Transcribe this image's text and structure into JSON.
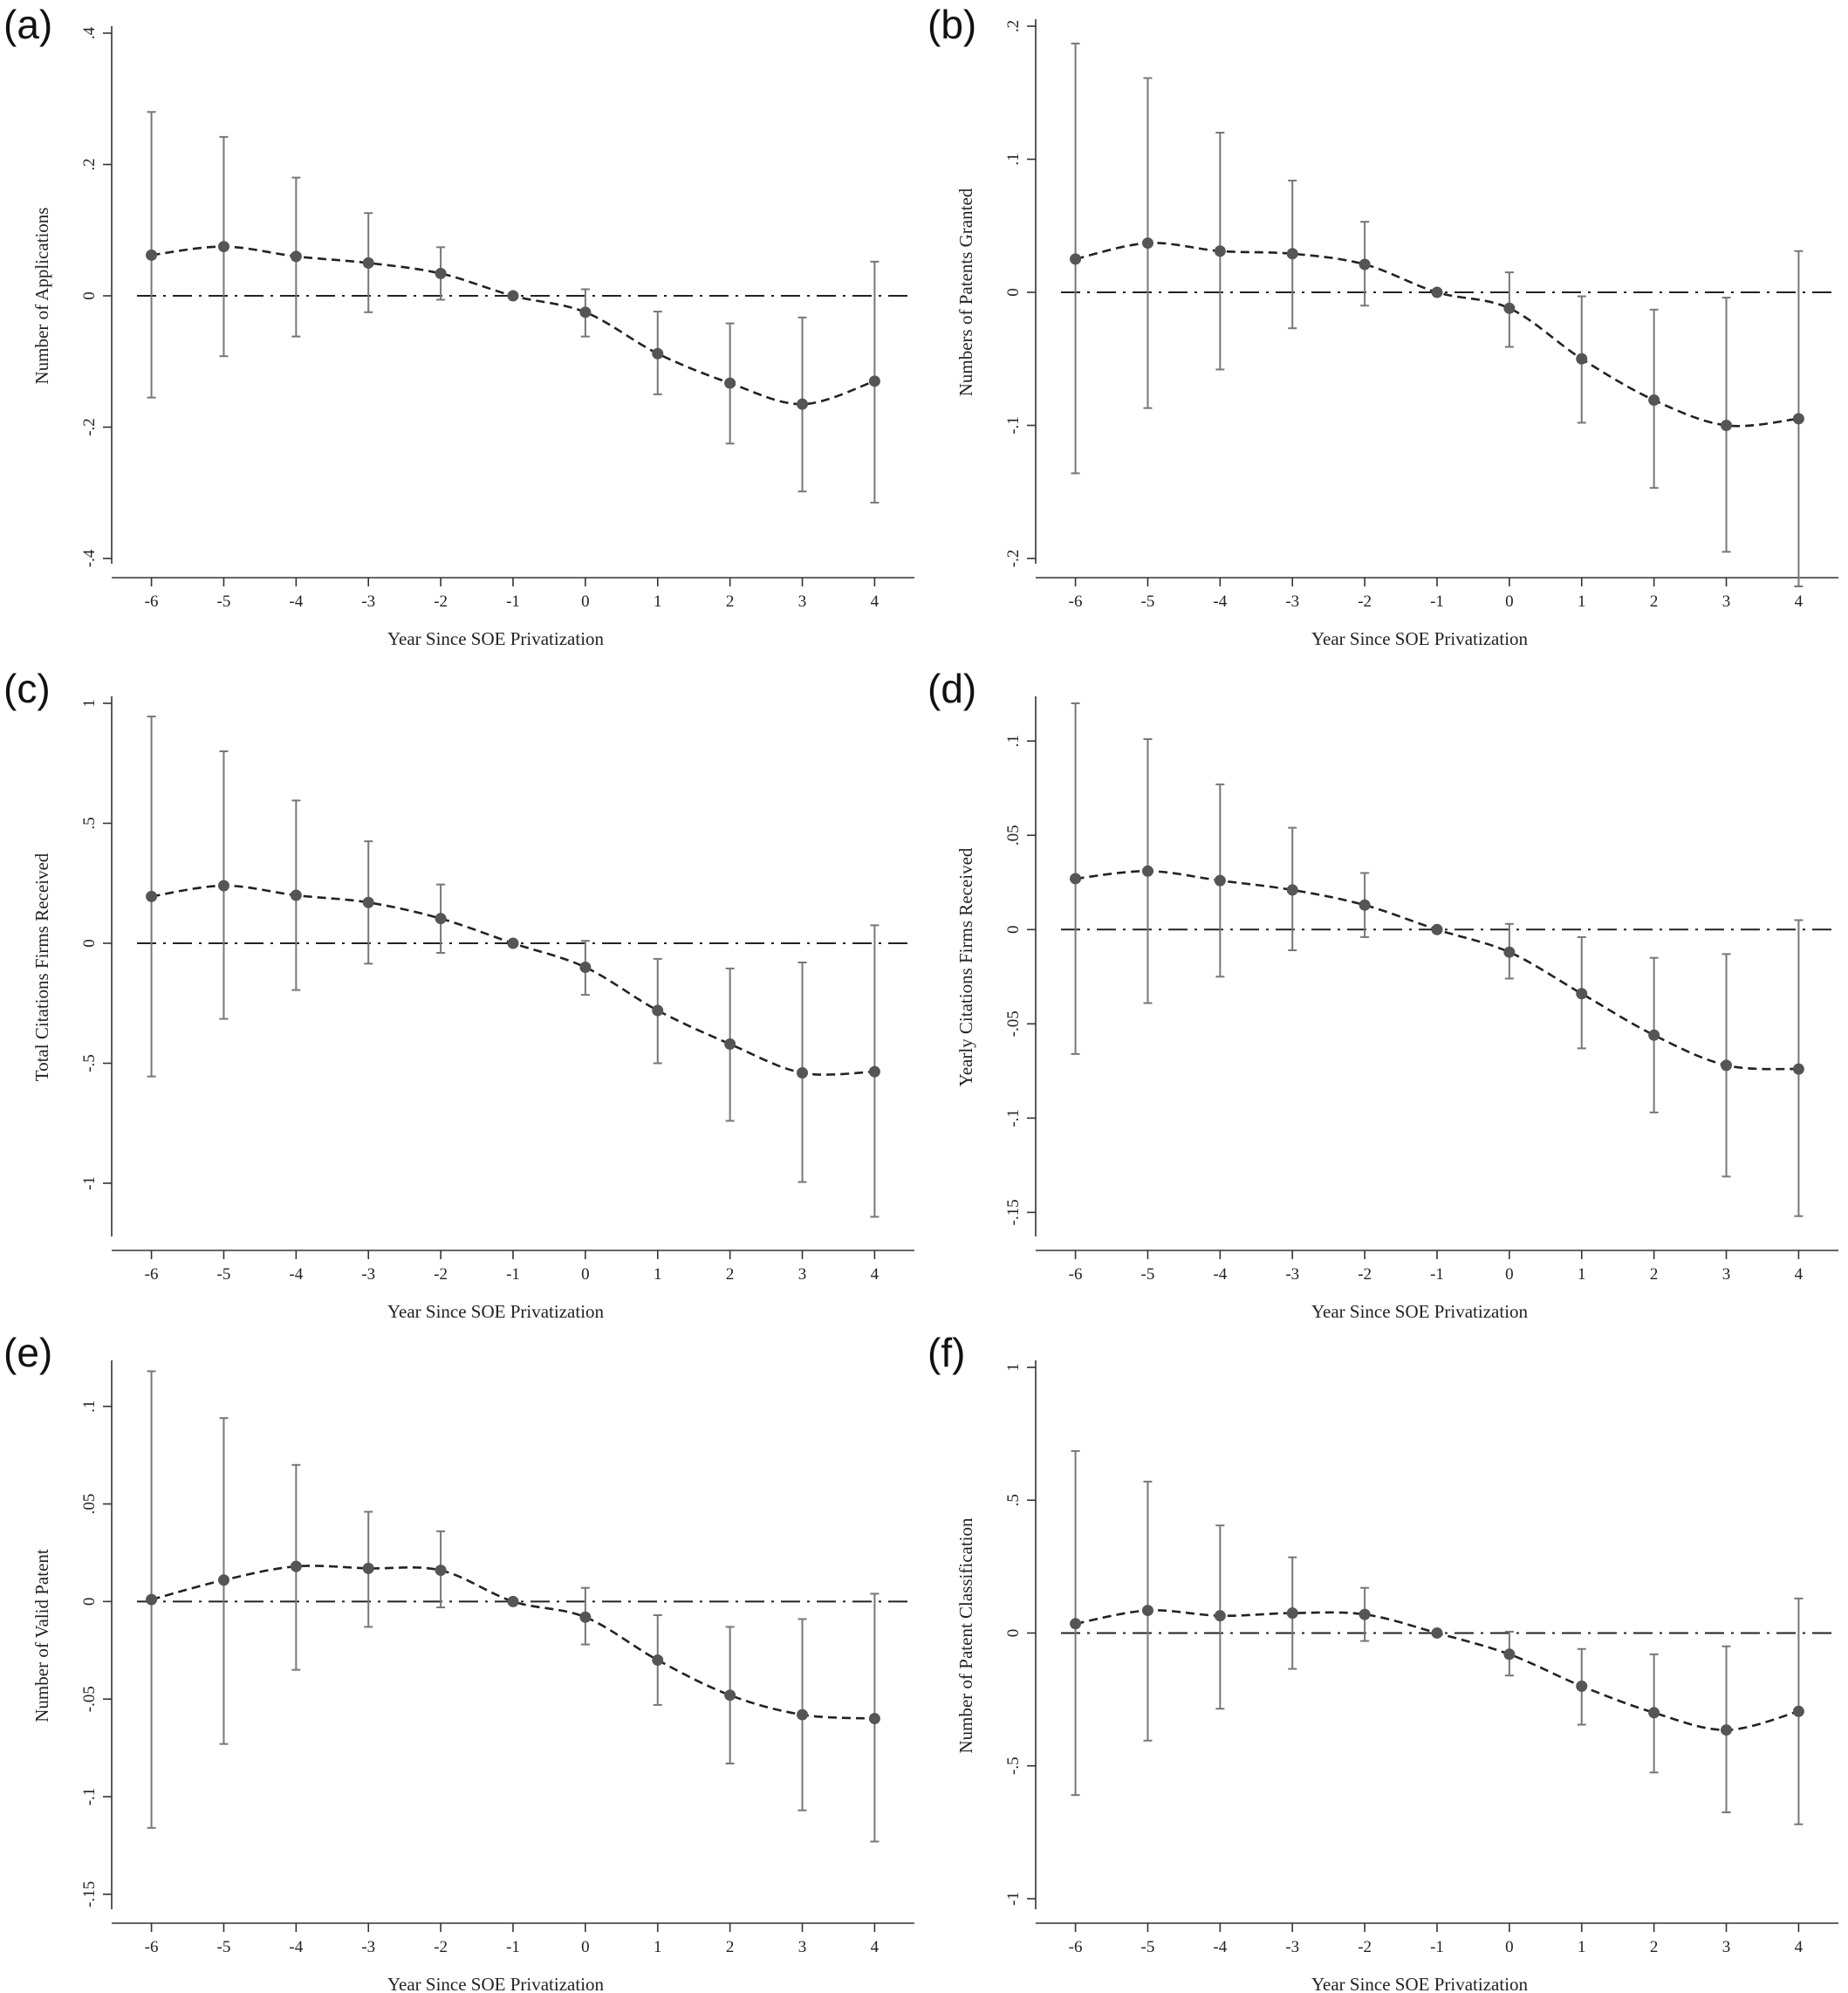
{
  "chart_data": [
    {
      "panel_label": "(a)",
      "type": "line",
      "xlabel": "Year Since SOE Privatization",
      "ylabel": "Number of Applications",
      "x": [
        -6,
        -5,
        -4,
        -3,
        -2,
        -1,
        0,
        1,
        2,
        3,
        4
      ],
      "ylim": [
        -0.4,
        0.4
      ],
      "yticks": [
        0.4,
        0.2,
        0,
        -0.2,
        -0.4
      ],
      "ytick_labels": [
        ".4",
        ".2",
        "0",
        "-.2",
        "-.4"
      ],
      "estimate": [
        0.062,
        0.075,
        0.06,
        0.05,
        0.034,
        0.0,
        -0.025,
        -0.088,
        -0.133,
        -0.165,
        -0.13
      ],
      "ci_low": [
        -0.155,
        -0.092,
        -0.062,
        -0.025,
        -0.006,
        0.0,
        -0.062,
        -0.15,
        -0.225,
        -0.298,
        -0.315
      ],
      "ci_high": [
        0.28,
        0.242,
        0.18,
        0.126,
        0.074,
        0.0,
        0.01,
        -0.024,
        -0.042,
        -0.033,
        0.052
      ]
    },
    {
      "panel_label": "(b)",
      "type": "line",
      "xlabel": "Year Since SOE Privatization",
      "ylabel": "Numbers of Patents Granted",
      "x": [
        -6,
        -5,
        -4,
        -3,
        -2,
        -1,
        0,
        1,
        2,
        3,
        4
      ],
      "ylim": [
        -0.2,
        0.2
      ],
      "yticks": [
        0.2,
        0.1,
        0,
        -0.1,
        -0.2
      ],
      "ytick_labels": [
        ".2",
        ".1",
        "0",
        "-.1",
        "-.2"
      ],
      "estimate": [
        0.025,
        0.037,
        0.031,
        0.029,
        0.021,
        0.0,
        -0.012,
        -0.05,
        -0.081,
        -0.1,
        -0.095
      ],
      "ci_low": [
        -0.136,
        -0.087,
        -0.058,
        -0.027,
        -0.01,
        0.0,
        -0.041,
        -0.098,
        -0.147,
        -0.195,
        -0.221
      ],
      "ci_high": [
        0.187,
        0.161,
        0.12,
        0.084,
        0.053,
        0.0,
        0.015,
        -0.003,
        -0.013,
        -0.004,
        0.031
      ]
    },
    {
      "panel_label": "(c)",
      "type": "line",
      "xlabel": "Year Since SOE Privatization",
      "ylabel": "Total Citations Firms Received",
      "x": [
        -6,
        -5,
        -4,
        -3,
        -2,
        -1,
        0,
        1,
        2,
        3,
        4
      ],
      "ylim": [
        -1.2,
        1.0
      ],
      "yticks": [
        1,
        0.5,
        0,
        -0.5,
        -1
      ],
      "ytick_labels": [
        "1",
        ".5",
        "0",
        "-.5",
        "-1"
      ],
      "estimate": [
        0.195,
        0.24,
        0.2,
        0.17,
        0.103,
        0.0,
        -0.1,
        -0.28,
        -0.42,
        -0.54,
        -0.535
      ],
      "ci_low": [
        -0.555,
        -0.315,
        -0.195,
        -0.085,
        -0.04,
        0.0,
        -0.215,
        -0.5,
        -0.74,
        -0.995,
        -1.14
      ],
      "ci_high": [
        0.945,
        0.8,
        0.595,
        0.425,
        0.245,
        0.0,
        0.01,
        -0.065,
        -0.105,
        -0.08,
        0.075
      ]
    },
    {
      "panel_label": "(d)",
      "type": "line",
      "xlabel": "Year Since SOE Privatization",
      "ylabel": "Yearly Citations Firms Received",
      "x": [
        -6,
        -5,
        -4,
        -3,
        -2,
        -1,
        0,
        1,
        2,
        3,
        4
      ],
      "ylim": [
        -0.16,
        0.12
      ],
      "yticks": [
        0.1,
        0.05,
        0,
        -0.05,
        -0.1,
        -0.15
      ],
      "ytick_labels": [
        ".1",
        ".05",
        "0",
        "-.05",
        "-.1",
        "-.15"
      ],
      "estimate": [
        0.027,
        0.031,
        0.026,
        0.021,
        0.013,
        0.0,
        -0.012,
        -0.034,
        -0.056,
        -0.072,
        -0.074
      ],
      "ci_low": [
        -0.066,
        -0.039,
        -0.025,
        -0.011,
        -0.004,
        0.0,
        -0.026,
        -0.063,
        -0.097,
        -0.131,
        -0.152
      ],
      "ci_high": [
        0.12,
        0.101,
        0.077,
        0.054,
        0.03,
        0.0,
        0.003,
        -0.004,
        -0.015,
        -0.013,
        0.005
      ]
    },
    {
      "panel_label": "(e)",
      "type": "line",
      "xlabel": "Year Since SOE Privatization",
      "ylabel": "Number of Valid Patent",
      "x": [
        -6,
        -5,
        -4,
        -3,
        -2,
        -1,
        0,
        1,
        2,
        3,
        4
      ],
      "ylim": [
        -0.155,
        0.12
      ],
      "yticks": [
        0.1,
        0.05,
        0,
        -0.05,
        -0.1,
        -0.15
      ],
      "ytick_labels": [
        ".1",
        ".05",
        "0",
        "-.05",
        "-.1",
        "-.15"
      ],
      "estimate": [
        0.001,
        0.011,
        0.018,
        0.017,
        0.016,
        0.0,
        -0.008,
        -0.03,
        -0.048,
        -0.058,
        -0.06
      ],
      "ci_low": [
        -0.116,
        -0.073,
        -0.035,
        -0.013,
        -0.003,
        0.0,
        -0.022,
        -0.053,
        -0.083,
        -0.107,
        -0.123
      ],
      "ci_high": [
        0.118,
        0.094,
        0.07,
        0.046,
        0.036,
        0.0,
        0.007,
        -0.007,
        -0.013,
        -0.009,
        0.004
      ]
    },
    {
      "panel_label": "(f)",
      "type": "line",
      "xlabel": "Year Since SOE Privatization",
      "ylabel": "Number of Patent Classification",
      "x": [
        -6,
        -5,
        -4,
        -3,
        -2,
        -1,
        0,
        1,
        2,
        3,
        4
      ],
      "ylim": [
        -1.02,
        1.0
      ],
      "yticks": [
        1,
        0.5,
        0,
        -0.5,
        -1
      ],
      "ytick_labels": [
        "1",
        ".5",
        "0",
        "-.5",
        "-1"
      ],
      "estimate": [
        0.035,
        0.085,
        0.065,
        0.075,
        0.07,
        0.0,
        -0.08,
        -0.2,
        -0.3,
        -0.365,
        -0.295
      ],
      "ci_low": [
        -0.61,
        -0.405,
        -0.285,
        -0.135,
        -0.03,
        0.0,
        -0.16,
        -0.345,
        -0.525,
        -0.675,
        -0.72
      ],
      "ci_high": [
        0.685,
        0.57,
        0.405,
        0.285,
        0.17,
        0.0,
        0.005,
        -0.06,
        -0.08,
        -0.05,
        0.13
      ]
    }
  ]
}
